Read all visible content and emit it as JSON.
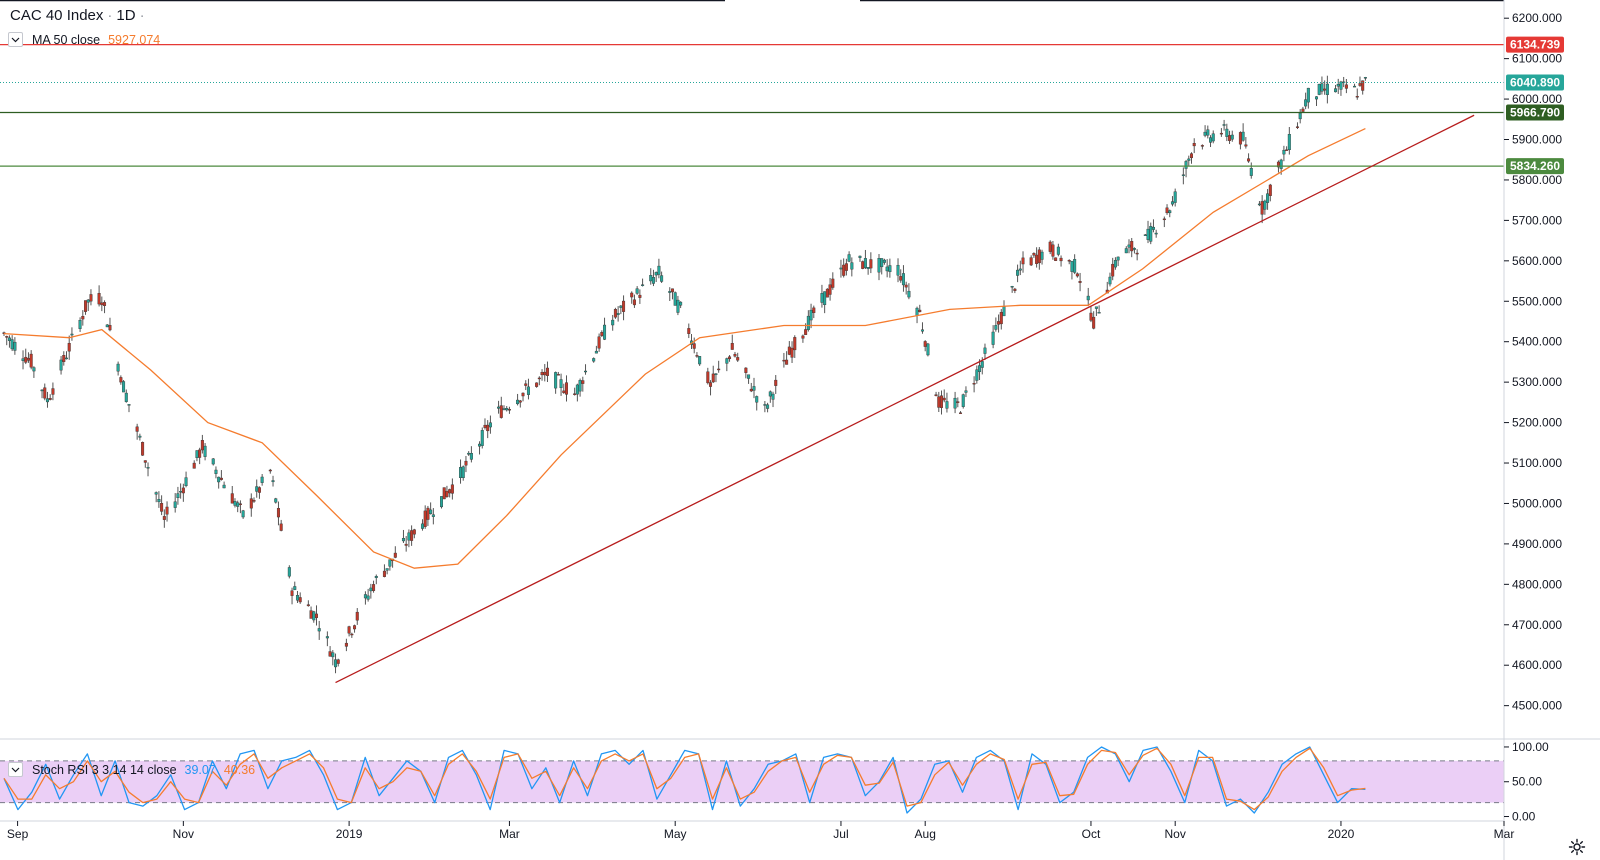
{
  "header": {
    "symbol": "CAC 40 Index",
    "separator": "·",
    "interval": "1D",
    "dot": "·"
  },
  "indicators": {
    "ma": {
      "label": "MA 50 close",
      "value": "5927.074",
      "color": "#f57c2e"
    },
    "stoch": {
      "label": "Stoch RSI 3 3 14 14 close",
      "k_value": "39.07",
      "d_value": "40.36",
      "k_color": "#2196f3",
      "d_color": "#f57c2e"
    }
  },
  "colors": {
    "up": "#26a69a",
    "down": "#c0392b",
    "wick": "#555555",
    "resistance": "#e53935",
    "support": "#4c8a3f",
    "trendline": "#b71c1c",
    "stoch_band": "#e8c7f5",
    "last_price": "#26a69a"
  },
  "chart_data": [
    {
      "type": "candlestick",
      "title": "CAC 40 Index · 1D",
      "x_axis_labels": [
        "Sep",
        "Nov",
        "2019",
        "Mar",
        "May",
        "Jul",
        "Aug",
        "Oct",
        "Nov",
        "2020",
        "Mar"
      ],
      "y_axis_labels": [
        "4500.000",
        "4600.000",
        "4700.000",
        "4800.000",
        "4900.000",
        "5000.000",
        "5100.000",
        "5200.000",
        "5300.000",
        "5400.000",
        "5500.000",
        "5600.000",
        "5700.000",
        "5800.000",
        "5900.000",
        "6000.000",
        "6100.000",
        "6200.000"
      ],
      "ylim": [
        4420,
        6245
      ],
      "date_range": [
        "2018-08-27",
        "2020-03-01"
      ],
      "anchors": [
        {
          "date": "2018-08-27",
          "close": 5420
        },
        {
          "date": "2018-09-06",
          "close": 5350
        },
        {
          "date": "2018-09-12",
          "close": 5255
        },
        {
          "date": "2018-09-27",
          "close": 5500
        },
        {
          "date": "2018-10-02",
          "close": 5510
        },
        {
          "date": "2018-10-10",
          "close": 5290
        },
        {
          "date": "2018-10-25",
          "close": 4960
        },
        {
          "date": "2018-10-31",
          "close": 5030
        },
        {
          "date": "2018-11-08",
          "close": 5140
        },
        {
          "date": "2018-11-23",
          "close": 4970
        },
        {
          "date": "2018-12-03",
          "close": 5080
        },
        {
          "date": "2018-12-11",
          "close": 4790
        },
        {
          "date": "2018-12-20",
          "close": 4720
        },
        {
          "date": "2018-12-27",
          "close": 4610
        },
        {
          "date": "2019-01-10",
          "close": 4800
        },
        {
          "date": "2019-01-25",
          "close": 4930
        },
        {
          "date": "2019-02-10",
          "close": 5060
        },
        {
          "date": "2019-02-24",
          "close": 5220
        },
        {
          "date": "2019-03-15",
          "close": 5320
        },
        {
          "date": "2019-03-25",
          "close": 5270
        },
        {
          "date": "2019-04-07",
          "close": 5450
        },
        {
          "date": "2019-04-25",
          "close": 5570
        },
        {
          "date": "2019-05-03",
          "close": 5480
        },
        {
          "date": "2019-05-14",
          "close": 5290
        },
        {
          "date": "2019-05-22",
          "close": 5380
        },
        {
          "date": "2019-06-03",
          "close": 5230
        },
        {
          "date": "2019-06-12",
          "close": 5370
        },
        {
          "date": "2019-06-21",
          "close": 5470
        },
        {
          "date": "2019-07-04",
          "close": 5600
        },
        {
          "date": "2019-07-22",
          "close": 5580
        },
        {
          "date": "2019-07-30",
          "close": 5470
        },
        {
          "date": "2019-08-06",
          "close": 5250
        },
        {
          "date": "2019-08-14",
          "close": 5240
        },
        {
          "date": "2019-08-24",
          "close": 5380
        },
        {
          "date": "2019-09-06",
          "close": 5590
        },
        {
          "date": "2019-09-16",
          "close": 5630
        },
        {
          "date": "2019-09-26",
          "close": 5580
        },
        {
          "date": "2019-10-02",
          "close": 5450
        },
        {
          "date": "2019-10-11",
          "close": 5610
        },
        {
          "date": "2019-10-21",
          "close": 5650
        },
        {
          "date": "2019-10-31",
          "close": 5740
        },
        {
          "date": "2019-11-08",
          "close": 5890
        },
        {
          "date": "2019-11-18",
          "close": 5920
        },
        {
          "date": "2019-11-26",
          "close": 5900
        },
        {
          "date": "2019-12-03",
          "close": 5730
        },
        {
          "date": "2019-12-11",
          "close": 5860
        },
        {
          "date": "2019-12-20",
          "close": 6010
        },
        {
          "date": "2019-12-30",
          "close": 6030
        },
        {
          "date": "2020-01-07",
          "close": 6020
        },
        {
          "date": "2020-01-10",
          "close": 6040.89
        }
      ],
      "ma_series": [
        {
          "date": "2018-08-27",
          "value": 5420
        },
        {
          "date": "2018-09-20",
          "value": 5410
        },
        {
          "date": "2018-10-02",
          "value": 5430
        },
        {
          "date": "2018-10-20",
          "value": 5330
        },
        {
          "date": "2018-11-10",
          "value": 5200
        },
        {
          "date": "2018-11-30",
          "value": 5150
        },
        {
          "date": "2018-12-20",
          "value": 5020
        },
        {
          "date": "2019-01-10",
          "value": 4880
        },
        {
          "date": "2019-01-25",
          "value": 4840
        },
        {
          "date": "2019-02-10",
          "value": 4850
        },
        {
          "date": "2019-02-28",
          "value": 4970
        },
        {
          "date": "2019-03-20",
          "value": 5120
        },
        {
          "date": "2019-04-20",
          "value": 5320
        },
        {
          "date": "2019-05-10",
          "value": 5410
        },
        {
          "date": "2019-06-10",
          "value": 5440
        },
        {
          "date": "2019-07-10",
          "value": 5440
        },
        {
          "date": "2019-08-10",
          "value": 5480
        },
        {
          "date": "2019-09-05",
          "value": 5490
        },
        {
          "date": "2019-09-30",
          "value": 5490
        },
        {
          "date": "2019-10-20",
          "value": 5580
        },
        {
          "date": "2019-11-15",
          "value": 5720
        },
        {
          "date": "2019-12-05",
          "value": 5800
        },
        {
          "date": "2019-12-20",
          "value": 5860
        },
        {
          "date": "2020-01-10",
          "value": 5927.074
        }
      ],
      "levels": [
        {
          "name": "resistance",
          "value": 6134.739,
          "label": "6134.739",
          "color": "#e53935"
        },
        {
          "name": "last_price",
          "value": 6040.89,
          "label": "6040.890",
          "color": "#26a69a",
          "dotted": true
        },
        {
          "name": "support_upper",
          "value": 5966.79,
          "label": "5966.790",
          "color": "#2e5e22"
        },
        {
          "name": "support_lower",
          "value": 5834.26,
          "label": "5834.260",
          "color": "#4c8a3f"
        }
      ],
      "trendline": {
        "start": {
          "date": "2018-12-27",
          "value": 4557
        },
        "end": {
          "date": "2020-02-19",
          "value": 5960
        }
      },
      "grid": false
    },
    {
      "type": "line",
      "title": "Stoch RSI 3 3 14 14 close",
      "y_axis_labels": [
        "0.00",
        "50.00",
        "100.00"
      ],
      "ylim": [
        -5,
        110
      ],
      "band": [
        20,
        80
      ],
      "series": [
        {
          "name": "K",
          "values": [
            55,
            10,
            35,
            75,
            25,
            60,
            90,
            30,
            80,
            20,
            15,
            30,
            60,
            10,
            20,
            80,
            40,
            90,
            95,
            40,
            80,
            85,
            95,
            60,
            10,
            20,
            85,
            30,
            55,
            80,
            65,
            20,
            85,
            95,
            60,
            10,
            95,
            90,
            40,
            70,
            20,
            80,
            30,
            90,
            95,
            75,
            95,
            25,
            60,
            95,
            90,
            10,
            80,
            15,
            40,
            75,
            80,
            90,
            20,
            85,
            90,
            85,
            30,
            50,
            85,
            5,
            25,
            75,
            80,
            35,
            85,
            95,
            80,
            10,
            90,
            75,
            20,
            35,
            85,
            100,
            90,
            50,
            95,
            100,
            65,
            20,
            95,
            80,
            15,
            25,
            5,
            35,
            75,
            90,
            100,
            60,
            20,
            40,
            39
          ]
        },
        {
          "name": "D",
          "values": [
            55,
            25,
            25,
            60,
            40,
            50,
            80,
            50,
            65,
            35,
            20,
            25,
            50,
            25,
            20,
            65,
            45,
            75,
            90,
            55,
            70,
            80,
            90,
            70,
            25,
            20,
            70,
            40,
            50,
            70,
            65,
            30,
            75,
            90,
            65,
            25,
            85,
            90,
            55,
            65,
            30,
            70,
            40,
            80,
            90,
            80,
            90,
            40,
            55,
            85,
            90,
            25,
            70,
            25,
            35,
            65,
            80,
            85,
            35,
            75,
            88,
            85,
            45,
            48,
            78,
            15,
            20,
            60,
            78,
            45,
            75,
            90,
            82,
            25,
            75,
            78,
            30,
            32,
            75,
            95,
            92,
            60,
            88,
            98,
            75,
            30,
            85,
            85,
            25,
            22,
            10,
            28,
            65,
            85,
            98,
            70,
            30,
            38,
            40.36
          ]
        }
      ]
    }
  ]
}
